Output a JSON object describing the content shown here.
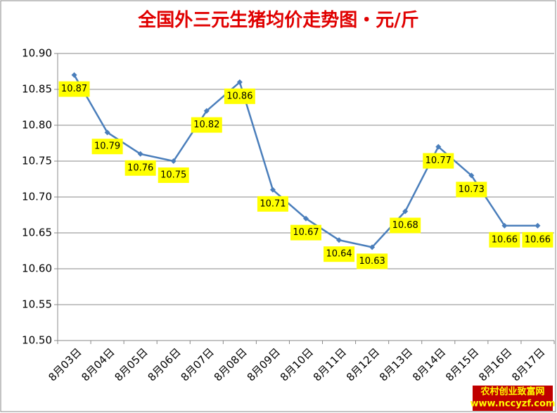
{
  "chart_data": {
    "type": "line",
    "title": "全国外三元生猪均价走势图・元/斤",
    "categories": [
      "8月03日",
      "8月04日",
      "8月05日",
      "8月06日",
      "8月07日",
      "8月08日",
      "8月09日",
      "8月10日",
      "8月11日",
      "8月12日",
      "8月13日",
      "8月14日",
      "8月15日",
      "8月16日",
      "8月17日"
    ],
    "values": [
      10.87,
      10.79,
      10.76,
      10.75,
      10.82,
      10.86,
      10.71,
      10.67,
      10.64,
      10.63,
      10.68,
      10.77,
      10.73,
      10.66,
      10.66
    ],
    "color": "#4a7ebb",
    "label_color": "#ffff00",
    "ylim": [
      10.5,
      10.9
    ],
    "yticks": [
      {
        "value": 10.5,
        "label": "10.50"
      },
      10.55,
      {
        "value": 10.6,
        "label": "10.60"
      },
      10.65,
      {
        "value": 10.7,
        "label": "10.70"
      },
      10.75,
      {
        "value": 10.8,
        "label": "10.80"
      },
      10.85,
      {
        "value": 10.9,
        "label": "10.90"
      }
    ],
    "grid": true,
    "watermark": [
      "农村创业致富网",
      "www.nccyzf.com"
    ]
  }
}
